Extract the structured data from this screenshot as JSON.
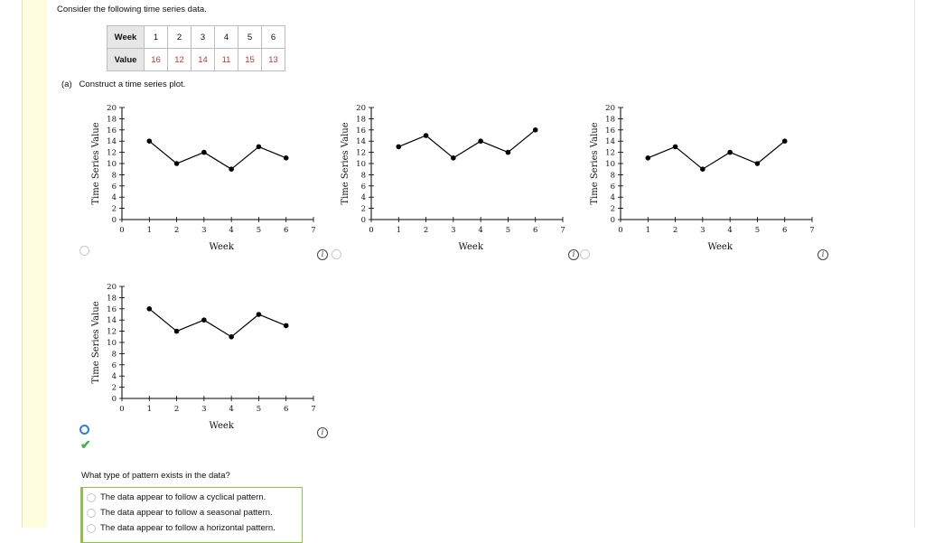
{
  "intro": "Consider the following time series data.",
  "table": {
    "week_label": "Week",
    "value_label": "Value",
    "weeks": [
      "1",
      "2",
      "3",
      "4",
      "5",
      "6"
    ],
    "values": [
      "16",
      "12",
      "14",
      "11",
      "15",
      "13"
    ]
  },
  "part_a": {
    "label": "(a)",
    "text": "Construct a time series plot."
  },
  "chart_data": [
    {
      "type": "line",
      "x": [
        1,
        2,
        3,
        4,
        5,
        6
      ],
      "values": [
        14,
        10,
        12,
        9,
        13,
        11
      ],
      "xlabel": "Week",
      "ylabel": "Time Series Value",
      "xlim": [
        0,
        7
      ],
      "ylim": [
        0,
        20
      ],
      "xticks": [
        "0",
        "1",
        "2",
        "3",
        "4",
        "5",
        "6",
        "7"
      ],
      "yticks": [
        "0",
        "2",
        "4",
        "6",
        "8",
        "10",
        "12",
        "14",
        "16",
        "18",
        "20"
      ],
      "selected": false
    },
    {
      "type": "line",
      "x": [
        1,
        2,
        3,
        4,
        5,
        6
      ],
      "values": [
        13,
        15,
        11,
        14,
        12,
        16
      ],
      "xlabel": "Week",
      "ylabel": "Time Series Value",
      "xlim": [
        0,
        7
      ],
      "ylim": [
        0,
        20
      ],
      "xticks": [
        "0",
        "1",
        "2",
        "3",
        "4",
        "5",
        "6",
        "7"
      ],
      "yticks": [
        "0",
        "2",
        "4",
        "6",
        "8",
        "10",
        "12",
        "14",
        "16",
        "18",
        "20"
      ],
      "selected": false
    },
    {
      "type": "line",
      "x": [
        1,
        2,
        3,
        4,
        5,
        6
      ],
      "values": [
        11,
        13,
        9,
        12,
        10,
        14
      ],
      "xlabel": "Week",
      "ylabel": "Time Series Value",
      "xlim": [
        0,
        7
      ],
      "ylim": [
        0,
        20
      ],
      "xticks": [
        "0",
        "1",
        "2",
        "3",
        "4",
        "5",
        "6",
        "7"
      ],
      "yticks": [
        "0",
        "2",
        "4",
        "6",
        "8",
        "10",
        "12",
        "14",
        "16",
        "18",
        "20"
      ],
      "selected": false
    },
    {
      "type": "line",
      "x": [
        1,
        2,
        3,
        4,
        5,
        6
      ],
      "values": [
        16,
        12,
        14,
        11,
        15,
        13
      ],
      "xlabel": "Week",
      "ylabel": "Time Series Value",
      "xlim": [
        0,
        7
      ],
      "ylim": [
        0,
        20
      ],
      "xticks": [
        "0",
        "1",
        "2",
        "3",
        "4",
        "5",
        "6",
        "7"
      ],
      "yticks": [
        "0",
        "2",
        "4",
        "6",
        "8",
        "10",
        "12",
        "14",
        "16",
        "18",
        "20"
      ],
      "selected": true
    }
  ],
  "question": "What type of pattern exists in the data?",
  "options": [
    "The data appear to follow a cyclical pattern.",
    "The data appear to follow a seasonal pattern.",
    "The data appear to follow a horizontal pattern."
  ],
  "colors": {
    "accent": "#2f7fd6",
    "correct": "#4caf50",
    "table_value": "#c0392b"
  }
}
